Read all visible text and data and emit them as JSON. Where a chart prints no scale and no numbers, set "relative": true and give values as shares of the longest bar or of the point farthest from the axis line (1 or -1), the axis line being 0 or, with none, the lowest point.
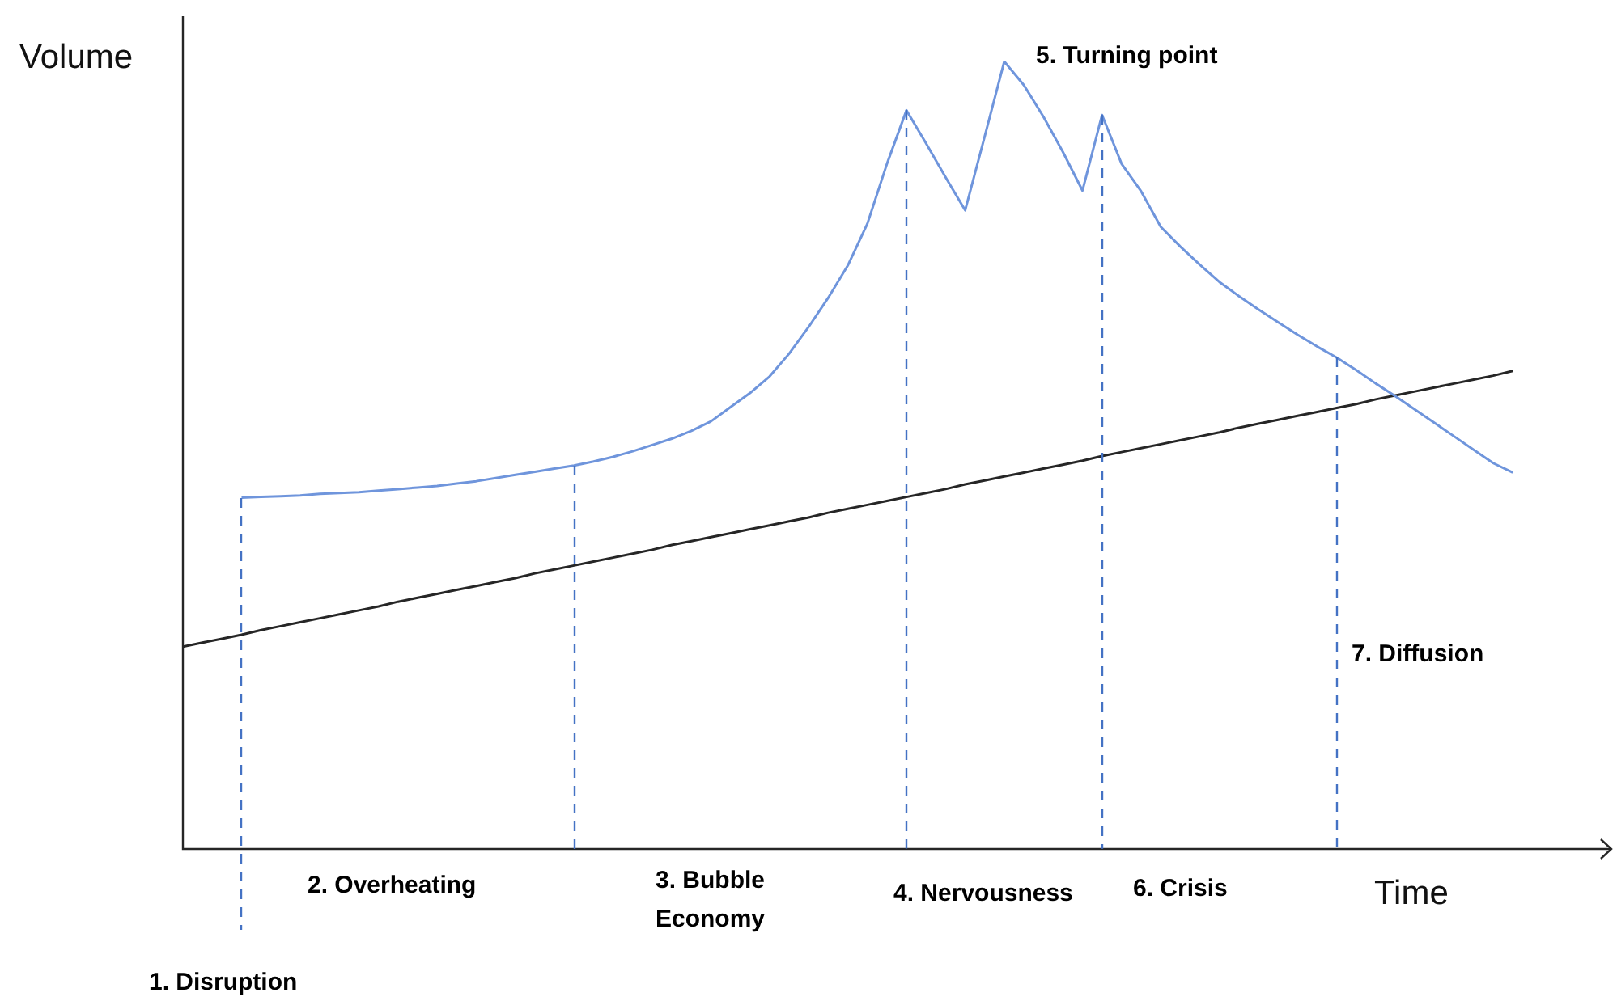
{
  "chart_data": {
    "type": "line",
    "relative": true,
    "xlabel": "Time",
    "ylabel": "Volume",
    "tick_labels": false,
    "legend": false,
    "marker": "none",
    "categories": [
      null,
      null,
      null,
      null,
      null,
      null,
      null,
      null,
      null,
      null,
      null,
      null,
      null,
      null,
      null,
      null,
      null,
      null,
      null,
      null,
      null,
      null,
      null,
      null,
      null,
      null,
      null,
      null,
      null,
      null,
      null,
      null,
      null,
      null,
      null,
      null,
      null,
      null,
      null,
      null,
      null,
      null,
      null,
      null,
      null,
      null,
      null,
      null,
      null,
      null,
      null,
      null,
      null,
      null,
      null,
      null,
      null,
      null,
      null,
      null,
      null,
      null,
      null,
      null,
      null,
      null,
      null,
      null,
      null,
      null,
      null,
      null,
      null,
      null
    ],
    "series": [
      {
        "color": "#6f95dc",
        "values": [
          null,
          null,
          null,
          0.446,
          0.447,
          0.448,
          0.449,
          0.451,
          0.452,
          0.453,
          0.455,
          0.457,
          0.459,
          0.461,
          0.464,
          0.467,
          0.471,
          0.475,
          0.479,
          0.483,
          0.487,
          0.492,
          0.498,
          0.505,
          0.513,
          0.521,
          0.531,
          0.543,
          0.561,
          0.579,
          0.6,
          0.629,
          0.663,
          0.7,
          0.741,
          0.794,
          0.87,
          0.938,
          0.896,
          0.853,
          0.811,
          0.905,
          1,
          0.97,
          0.93,
          0.885,
          0.836,
          0.932,
          0.87,
          0.835,
          0.79,
          0.765,
          0.742,
          0.72,
          0.702,
          0.685,
          0.669,
          0.653,
          0.638,
          0.624,
          0.608,
          0.591,
          0.575,
          0.558,
          0.541,
          0.524,
          0.507,
          0.49,
          0.478,
          null,
          null,
          null,
          null,
          null
        ]
      },
      {
        "color": "#262626",
        "values": [
          0.257,
          0.262,
          0.267,
          0.272,
          0.278,
          0.283,
          0.288,
          0.293,
          0.298,
          0.303,
          0.308,
          0.314,
          0.319,
          0.324,
          0.329,
          0.334,
          0.339,
          0.344,
          0.35,
          0.355,
          0.36,
          0.365,
          0.37,
          0.375,
          0.38,
          0.386,
          0.391,
          0.396,
          0.401,
          0.406,
          0.411,
          0.416,
          0.421,
          0.427,
          0.432,
          0.437,
          0.442,
          0.447,
          0.452,
          0.457,
          0.463,
          0.468,
          0.473,
          0.478,
          0.483,
          0.488,
          0.493,
          0.499,
          0.504,
          0.509,
          0.514,
          0.519,
          0.524,
          0.529,
          0.535,
          0.54,
          0.545,
          0.55,
          0.555,
          0.56,
          0.565,
          0.571,
          0.576,
          0.581,
          0.586,
          0.591,
          0.596,
          0.601,
          0.607,
          null,
          null,
          null,
          null,
          null
        ]
      }
    ],
    "annotations": [
      "1. Disruption",
      "2. Overheating",
      "3. Bubble Economy",
      "4. Nervousness",
      "5. Turning point",
      "6. Crisis",
      "7. Diffusion"
    ]
  }
}
